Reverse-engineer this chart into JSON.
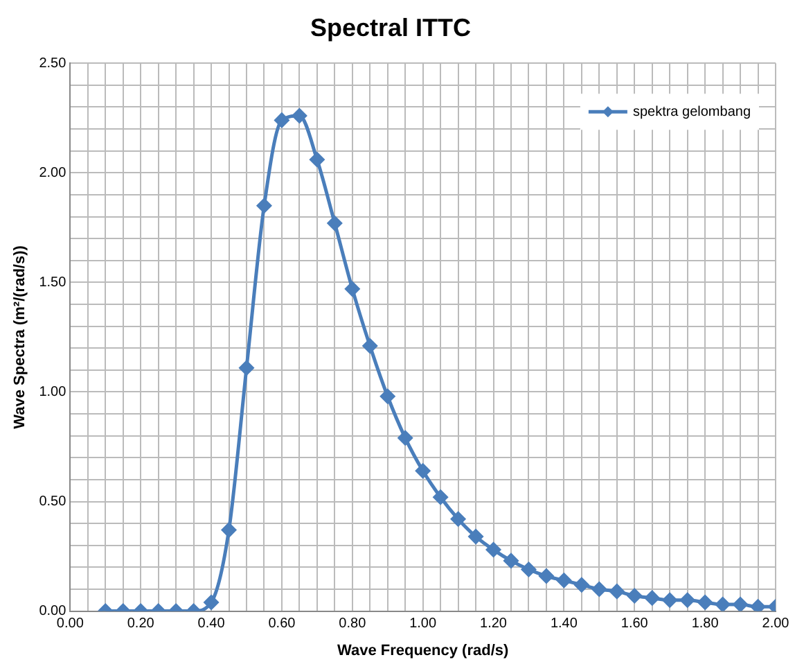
{
  "chart_data": {
    "type": "line",
    "title": "Spectral ITTC",
    "xlabel": "Wave Frequency (rad/s)",
    "ylabel": "Wave Spectra (m²/(rad/s))",
    "x": [
      0.1,
      0.15,
      0.2,
      0.25,
      0.3,
      0.35,
      0.4,
      0.45,
      0.5,
      0.55,
      0.6,
      0.65,
      0.7,
      0.75,
      0.8,
      0.85,
      0.9,
      0.95,
      1.0,
      1.05,
      1.1,
      1.15,
      1.2,
      1.25,
      1.3,
      1.35,
      1.4,
      1.45,
      1.5,
      1.55,
      1.6,
      1.65,
      1.7,
      1.75,
      1.8,
      1.85,
      1.9,
      1.95,
      2.0
    ],
    "series": [
      {
        "name": "spektra gelombang",
        "color": "#4a7ebb",
        "values": [
          0,
          0,
          0,
          0,
          0,
          0,
          0.04,
          0.37,
          1.11,
          1.85,
          2.24,
          2.26,
          2.06,
          1.77,
          1.47,
          1.21,
          0.98,
          0.79,
          0.64,
          0.52,
          0.42,
          0.34,
          0.28,
          0.23,
          0.19,
          0.16,
          0.14,
          0.12,
          0.1,
          0.09,
          0.07,
          0.06,
          0.05,
          0.05,
          0.04,
          0.03,
          0.03,
          0.02,
          0.02
        ]
      }
    ],
    "xlim": [
      0,
      2
    ],
    "ylim": [
      0,
      2.5
    ],
    "xticks": [
      {
        "value": 0,
        "label": "0.00"
      },
      {
        "value": 0.05,
        "label": null
      },
      {
        "value": 0.1,
        "label": null
      },
      {
        "value": 0.15,
        "label": null
      },
      {
        "value": 0.2,
        "label": "0.20"
      },
      {
        "value": 0.25,
        "label": null
      },
      {
        "value": 0.3,
        "label": null
      },
      {
        "value": 0.35,
        "label": null
      },
      {
        "value": 0.4,
        "label": "0.40"
      },
      {
        "value": 0.45,
        "label": null
      },
      {
        "value": 0.5,
        "label": null
      },
      {
        "value": 0.55,
        "label": null
      },
      {
        "value": 0.6,
        "label": "0.60"
      },
      {
        "value": 0.65,
        "label": null
      },
      {
        "value": 0.7,
        "label": null
      },
      {
        "value": 0.75,
        "label": null
      },
      {
        "value": 0.8,
        "label": "0.80"
      },
      {
        "value": 0.85,
        "label": null
      },
      {
        "value": 0.9,
        "label": null
      },
      {
        "value": 0.95,
        "label": null
      },
      {
        "value": 1.0,
        "label": "1.00"
      },
      {
        "value": 1.05,
        "label": null
      },
      {
        "value": 1.1,
        "label": null
      },
      {
        "value": 1.15,
        "label": null
      },
      {
        "value": 1.2,
        "label": "1.20"
      },
      {
        "value": 1.25,
        "label": null
      },
      {
        "value": 1.3,
        "label": null
      },
      {
        "value": 1.35,
        "label": null
      },
      {
        "value": 1.4,
        "label": "1.40"
      },
      {
        "value": 1.45,
        "label": null
      },
      {
        "value": 1.5,
        "label": null
      },
      {
        "value": 1.55,
        "label": null
      },
      {
        "value": 1.6,
        "label": "1.60"
      },
      {
        "value": 1.65,
        "label": null
      },
      {
        "value": 1.7,
        "label": null
      },
      {
        "value": 1.75,
        "label": null
      },
      {
        "value": 1.8,
        "label": "1.80"
      },
      {
        "value": 1.85,
        "label": null
      },
      {
        "value": 1.9,
        "label": null
      },
      {
        "value": 1.95,
        "label": null
      },
      {
        "value": 2.0,
        "label": "2.00"
      }
    ],
    "yticks": [
      {
        "value": 0,
        "label": "0.00"
      },
      {
        "value": 0.1,
        "label": null
      },
      {
        "value": 0.2,
        "label": null
      },
      {
        "value": 0.3,
        "label": null
      },
      {
        "value": 0.4,
        "label": null
      },
      {
        "value": 0.5,
        "label": "0.50"
      },
      {
        "value": 0.6,
        "label": null
      },
      {
        "value": 0.7,
        "label": null
      },
      {
        "value": 0.8,
        "label": null
      },
      {
        "value": 0.9,
        "label": null
      },
      {
        "value": 1.0,
        "label": "1.00"
      },
      {
        "value": 1.1,
        "label": null
      },
      {
        "value": 1.2,
        "label": null
      },
      {
        "value": 1.3,
        "label": null
      },
      {
        "value": 1.4,
        "label": null
      },
      {
        "value": 1.5,
        "label": "1.50"
      },
      {
        "value": 1.6,
        "label": null
      },
      {
        "value": 1.7,
        "label": null
      },
      {
        "value": 1.8,
        "label": null
      },
      {
        "value": 1.9,
        "label": null
      },
      {
        "value": 2.0,
        "label": "2.00"
      },
      {
        "value": 2.1,
        "label": null
      },
      {
        "value": 2.2,
        "label": null
      },
      {
        "value": 2.3,
        "label": null
      },
      {
        "value": 2.4,
        "label": null
      },
      {
        "value": 2.5,
        "label": "2.50"
      }
    ],
    "grid": true,
    "legend": "top right",
    "marker": "diamond",
    "line_style": "solid"
  }
}
